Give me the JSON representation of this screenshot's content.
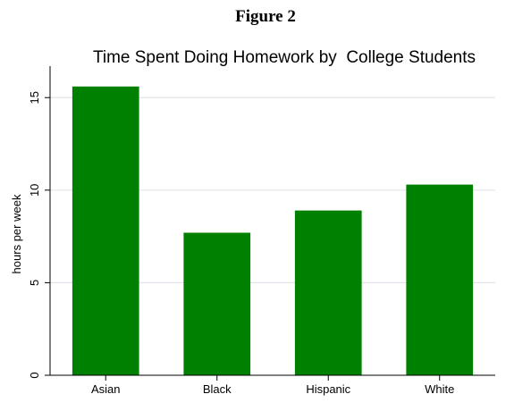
{
  "figure_label": "Figure 2",
  "chart_data": {
    "type": "bar",
    "title": "Time Spent Doing Homework by  College Students",
    "xlabel": "",
    "ylabel": "hours per week",
    "categories": [
      "Asian",
      "Black",
      "Hispanic",
      "White"
    ],
    "values": [
      15.6,
      7.7,
      8.9,
      10.3
    ],
    "ylim": [
      0,
      16.7
    ],
    "yticks": [
      0,
      5,
      10,
      15
    ],
    "grid": true,
    "colors": {
      "bar": "#008000",
      "grid": "#dfe5ea",
      "axis": "#000000"
    }
  }
}
